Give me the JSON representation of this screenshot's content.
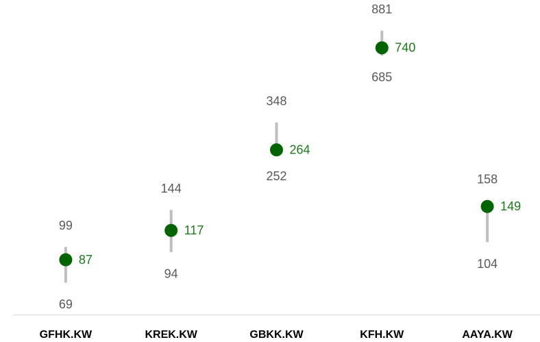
{
  "chart_data": {
    "type": "range-dot",
    "categories": [
      "GFHK.KW",
      "KREK.KW",
      "GBKK.KW",
      "KFH.KW",
      "AAYA.KW"
    ],
    "high": [
      99,
      144,
      348,
      881,
      158
    ],
    "low": [
      69,
      94,
      252,
      685,
      104
    ],
    "values": [
      87,
      117,
      264,
      740,
      149
    ],
    "color": "#006400",
    "range_color": "#bfbfbf",
    "log_scale": true,
    "ylim": [
      50,
      1200
    ]
  }
}
